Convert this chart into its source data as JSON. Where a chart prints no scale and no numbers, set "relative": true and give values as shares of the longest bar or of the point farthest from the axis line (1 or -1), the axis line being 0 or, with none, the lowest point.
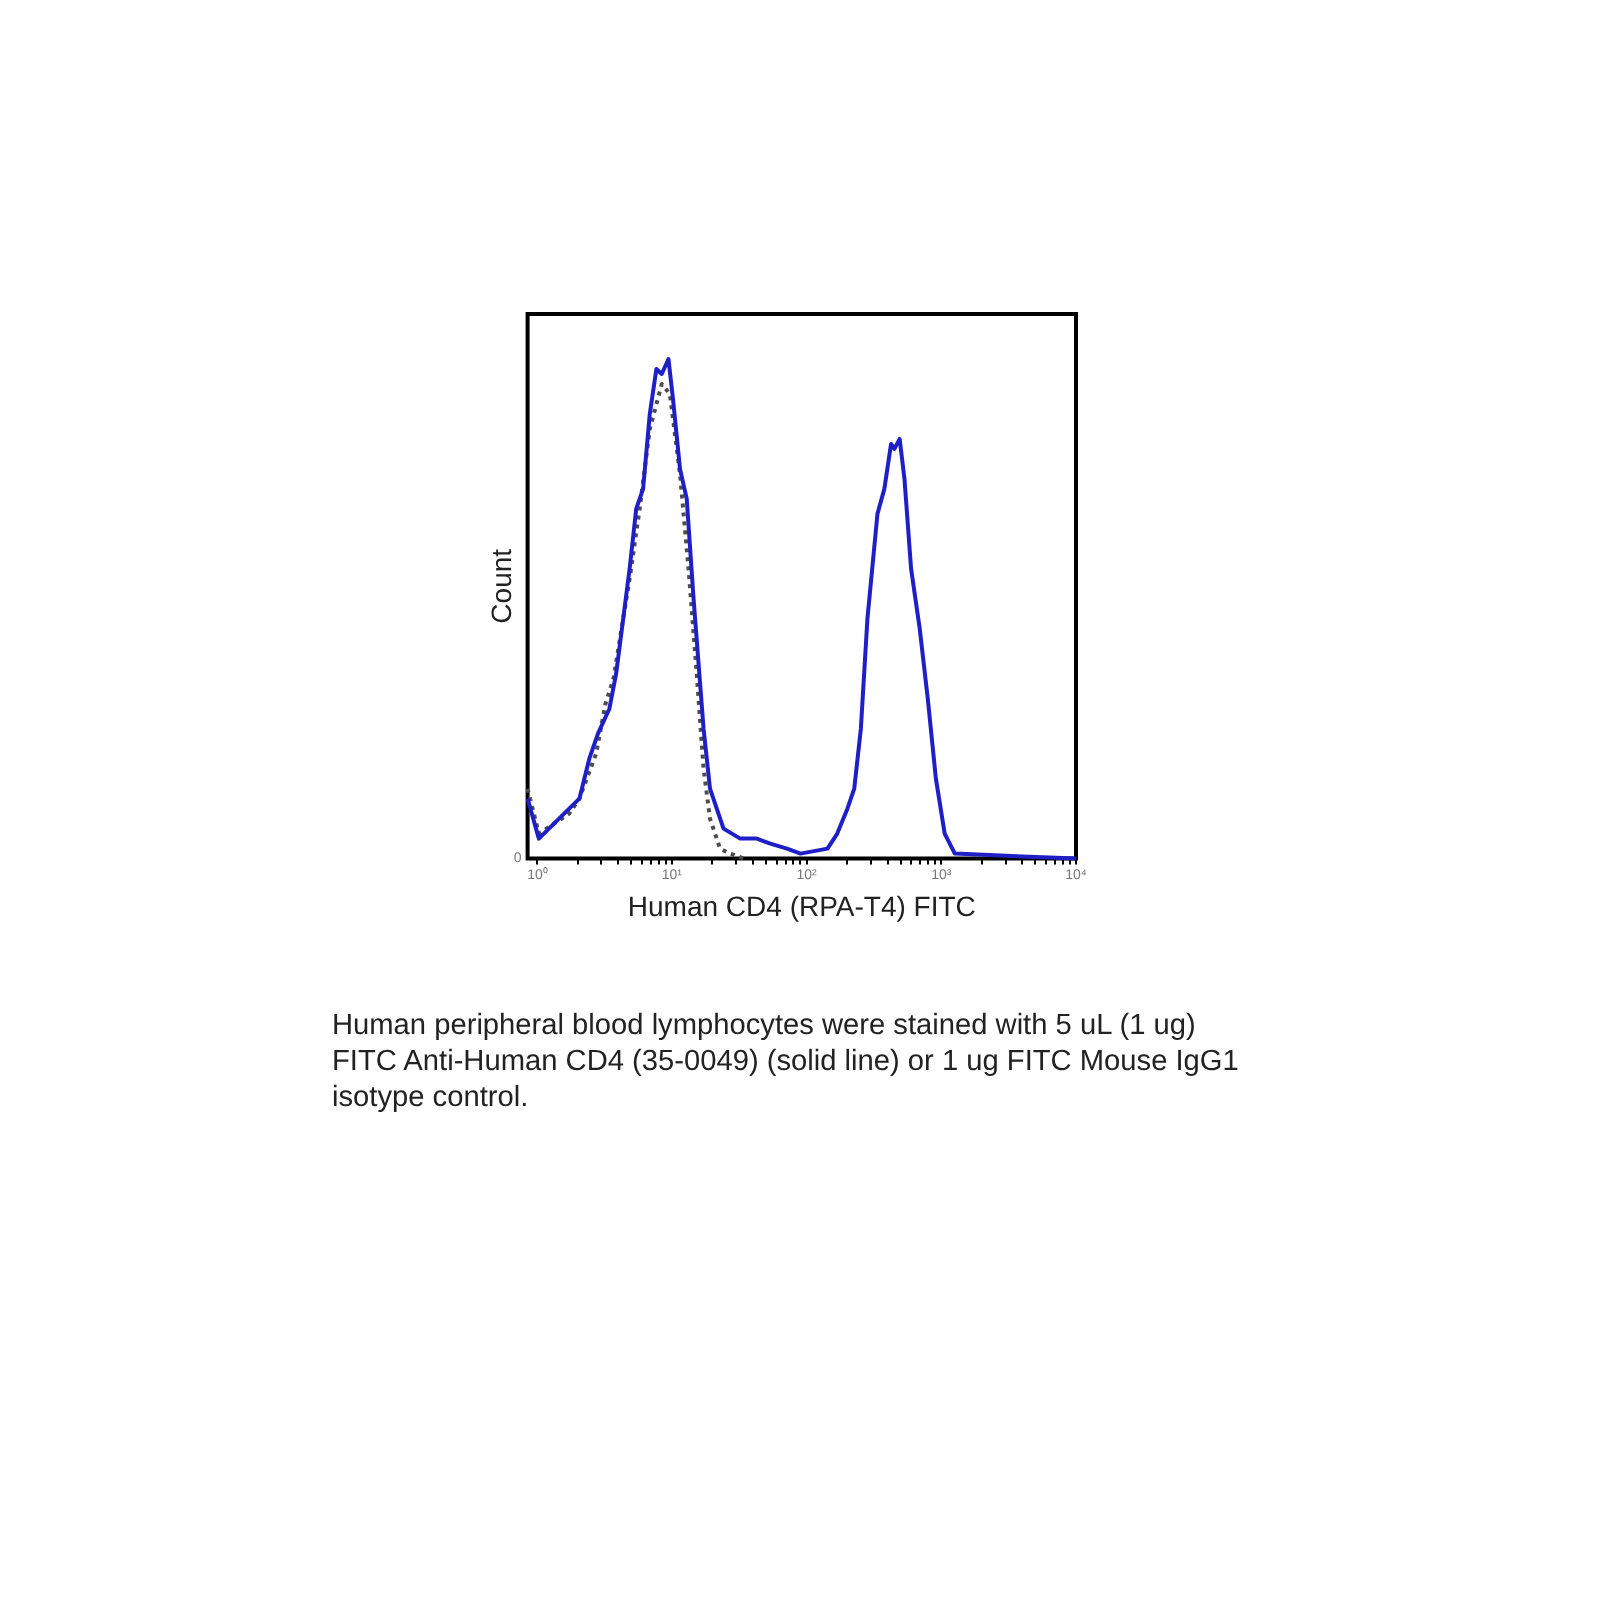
{
  "chart_data": {
    "type": "line",
    "xlabel": "Human CD4 (RPA-T4) FITC",
    "ylabel": "Count",
    "log": "x",
    "relative": true,
    "xlim": [
      0.85,
      10000
    ],
    "xticks": [
      {
        "value": 1,
        "label": "10⁰"
      },
      {
        "value": 2,
        "label": null
      },
      {
        "value": 3,
        "label": null
      },
      {
        "value": 4,
        "label": null
      },
      {
        "value": 5,
        "label": null
      },
      {
        "value": 6,
        "label": null
      },
      {
        "value": 7,
        "label": null
      },
      {
        "value": 8,
        "label": null
      },
      {
        "value": 9,
        "label": null
      },
      {
        "value": 10,
        "label": "10¹"
      },
      {
        "value": 20,
        "label": null
      },
      {
        "value": 30,
        "label": null
      },
      {
        "value": 40,
        "label": null
      },
      {
        "value": 50,
        "label": null
      },
      {
        "value": 60,
        "label": null
      },
      {
        "value": 70,
        "label": null
      },
      {
        "value": 80,
        "label": null
      },
      {
        "value": 90,
        "label": null
      },
      {
        "value": 100,
        "label": "10²"
      },
      {
        "value": 200,
        "label": null
      },
      {
        "value": 300,
        "label": null
      },
      {
        "value": 400,
        "label": null
      },
      {
        "value": 500,
        "label": null
      },
      {
        "value": 600,
        "label": null
      },
      {
        "value": 700,
        "label": null
      },
      {
        "value": 800,
        "label": null
      },
      {
        "value": 900,
        "label": null
      },
      {
        "value": 1000,
        "label": "10³"
      },
      {
        "value": 2000,
        "label": null
      },
      {
        "value": 3000,
        "label": null
      },
      {
        "value": 4000,
        "label": null
      },
      {
        "value": 5000,
        "label": null
      },
      {
        "value": 6000,
        "label": null
      },
      {
        "value": 7000,
        "label": null
      },
      {
        "value": 8000,
        "label": null
      },
      {
        "value": 9000,
        "label": null
      },
      {
        "value": 10000,
        "label": "10⁴"
      }
    ],
    "series": [
      {
        "color": "#1f1fc8",
        "line_style": "solid",
        "x": [
          0.85,
          1.03,
          1.73,
          2.06,
          2.44,
          2.83,
          3.44,
          3.86,
          4.86,
          5.44,
          6.12,
          6.86,
          7.68,
          8.42,
          9.44,
          10.2,
          11.5,
          12.9,
          14.5,
          17.2,
          19.2,
          24.2,
          32.2,
          42.8,
          53.8,
          71.6,
          90.2,
          143,
          169,
          201,
          226,
          253,
          283,
          336,
          378,
          424,
          449,
          491,
          533,
          597,
          692,
          794,
          912,
          1060,
          1260,
          10000
        ],
        "values": [
          0.12,
          0.04,
          0.1,
          0.12,
          0.2,
          0.25,
          0.3,
          0.37,
          0.58,
          0.7,
          0.74,
          0.89,
          0.98,
          0.97,
          1,
          0.92,
          0.78,
          0.72,
          0.52,
          0.26,
          0.14,
          0.06,
          0.04,
          0.04,
          0.03,
          0.02,
          0.01,
          0.02,
          0.05,
          0.1,
          0.14,
          0.26,
          0.48,
          0.69,
          0.74,
          0.83,
          0.82,
          0.84,
          0.76,
          0.58,
          0.46,
          0.32,
          0.16,
          0.05,
          0.01,
          0
        ]
      },
      {
        "color": "#4d4d4d",
        "line_style": "dotted",
        "x": [
          0.85,
          1.03,
          1.73,
          2.06,
          2.74,
          3.22,
          3.69,
          4.86,
          5.77,
          6.86,
          8.42,
          9.66,
          11.5,
          13.3,
          15.3,
          17.2,
          19.2,
          22.8,
          27.1,
          34.5
        ],
        "values": [
          0.14,
          0.05,
          0.09,
          0.12,
          0.21,
          0.31,
          0.36,
          0.56,
          0.7,
          0.86,
          0.95,
          0.93,
          0.77,
          0.58,
          0.37,
          0.18,
          0.08,
          0.02,
          0.01,
          0
        ]
      }
    ],
    "annotations": [
      "0",
      "Human peripheral blood lymphocytes were stained with 5 uL (1 ug) FITC Anti-Human CD4 (35-0049) (solid line) or 1 ug FITC Mouse IgG1 isotype control."
    ]
  }
}
